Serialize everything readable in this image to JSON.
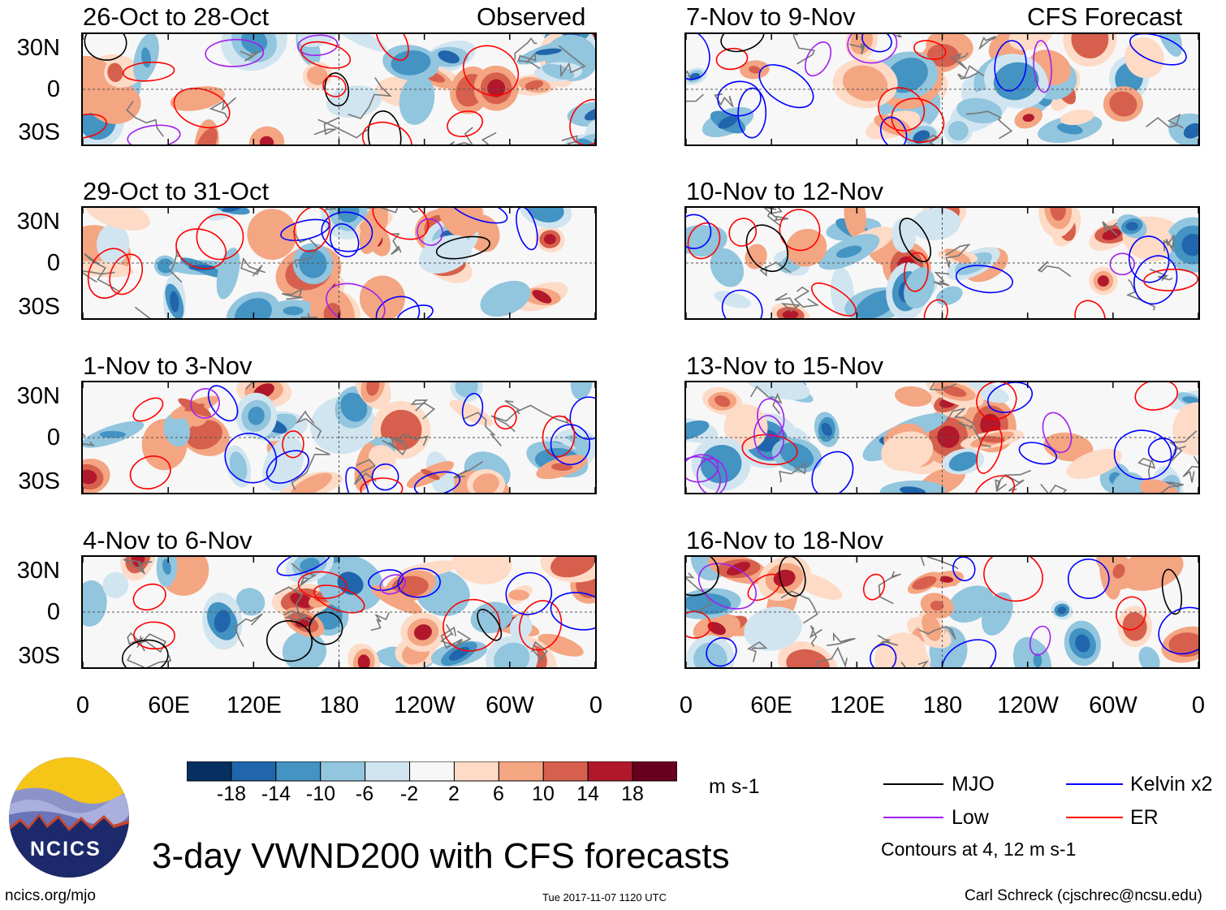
{
  "chart_data": {
    "type": "heatmap",
    "title": "3-day VWND200 with CFS forecasts",
    "variable": "VWND200",
    "units": "m s-1",
    "column_headers": {
      "left": "Observed",
      "right": "CFS Forecast"
    },
    "panels": [
      {
        "period": "26-Oct to 28-Oct",
        "source": "Observed"
      },
      {
        "period": "29-Oct to 31-Oct",
        "source": "Observed"
      },
      {
        "period": "1-Nov to 3-Nov",
        "source": "Observed"
      },
      {
        "period": "4-Nov to 6-Nov",
        "source": "Observed"
      },
      {
        "period": "7-Nov to 9-Nov",
        "source": "CFS Forecast"
      },
      {
        "period": "10-Nov to 12-Nov",
        "source": "CFS Forecast"
      },
      {
        "period": "13-Nov to 15-Nov",
        "source": "CFS Forecast"
      },
      {
        "period": "16-Nov to 18-Nov",
        "source": "CFS Forecast"
      }
    ],
    "y_ticks": [
      "30N",
      "0",
      "30S"
    ],
    "y_range": [
      -40,
      40
    ],
    "x_ticks": [
      "0",
      "60E",
      "120E",
      "180",
      "120W",
      "60W",
      "0"
    ],
    "x_range": [
      0,
      360
    ],
    "colorbar": {
      "labels": [
        "-18",
        "-14",
        "-10",
        "-6",
        "-2",
        "2",
        "6",
        "10",
        "14",
        "18"
      ],
      "colors": [
        "#053061",
        "#2166ac",
        "#4393c3",
        "#92c5de",
        "#d1e5f0",
        "#f7f7f7",
        "#fddbc7",
        "#f4a582",
        "#d6604d",
        "#b2182b",
        "#67001f"
      ]
    },
    "legend": [
      {
        "label": "MJO",
        "color": "#000000"
      },
      {
        "label": "Kelvin x2",
        "color": "#0000ff"
      },
      {
        "label": "Low",
        "color": "#a020f0"
      },
      {
        "label": "ER",
        "color": "#ff0000"
      }
    ],
    "contour_note": "Contours at 4, 12 m s-1"
  },
  "footer": {
    "logo_text": "NCICS",
    "url": "ncics.org/mjo",
    "timestamp": "Tue 2017-11-07 1120 UTC",
    "credit": "Carl Schreck (cjschrec@ncsu.edu)"
  }
}
